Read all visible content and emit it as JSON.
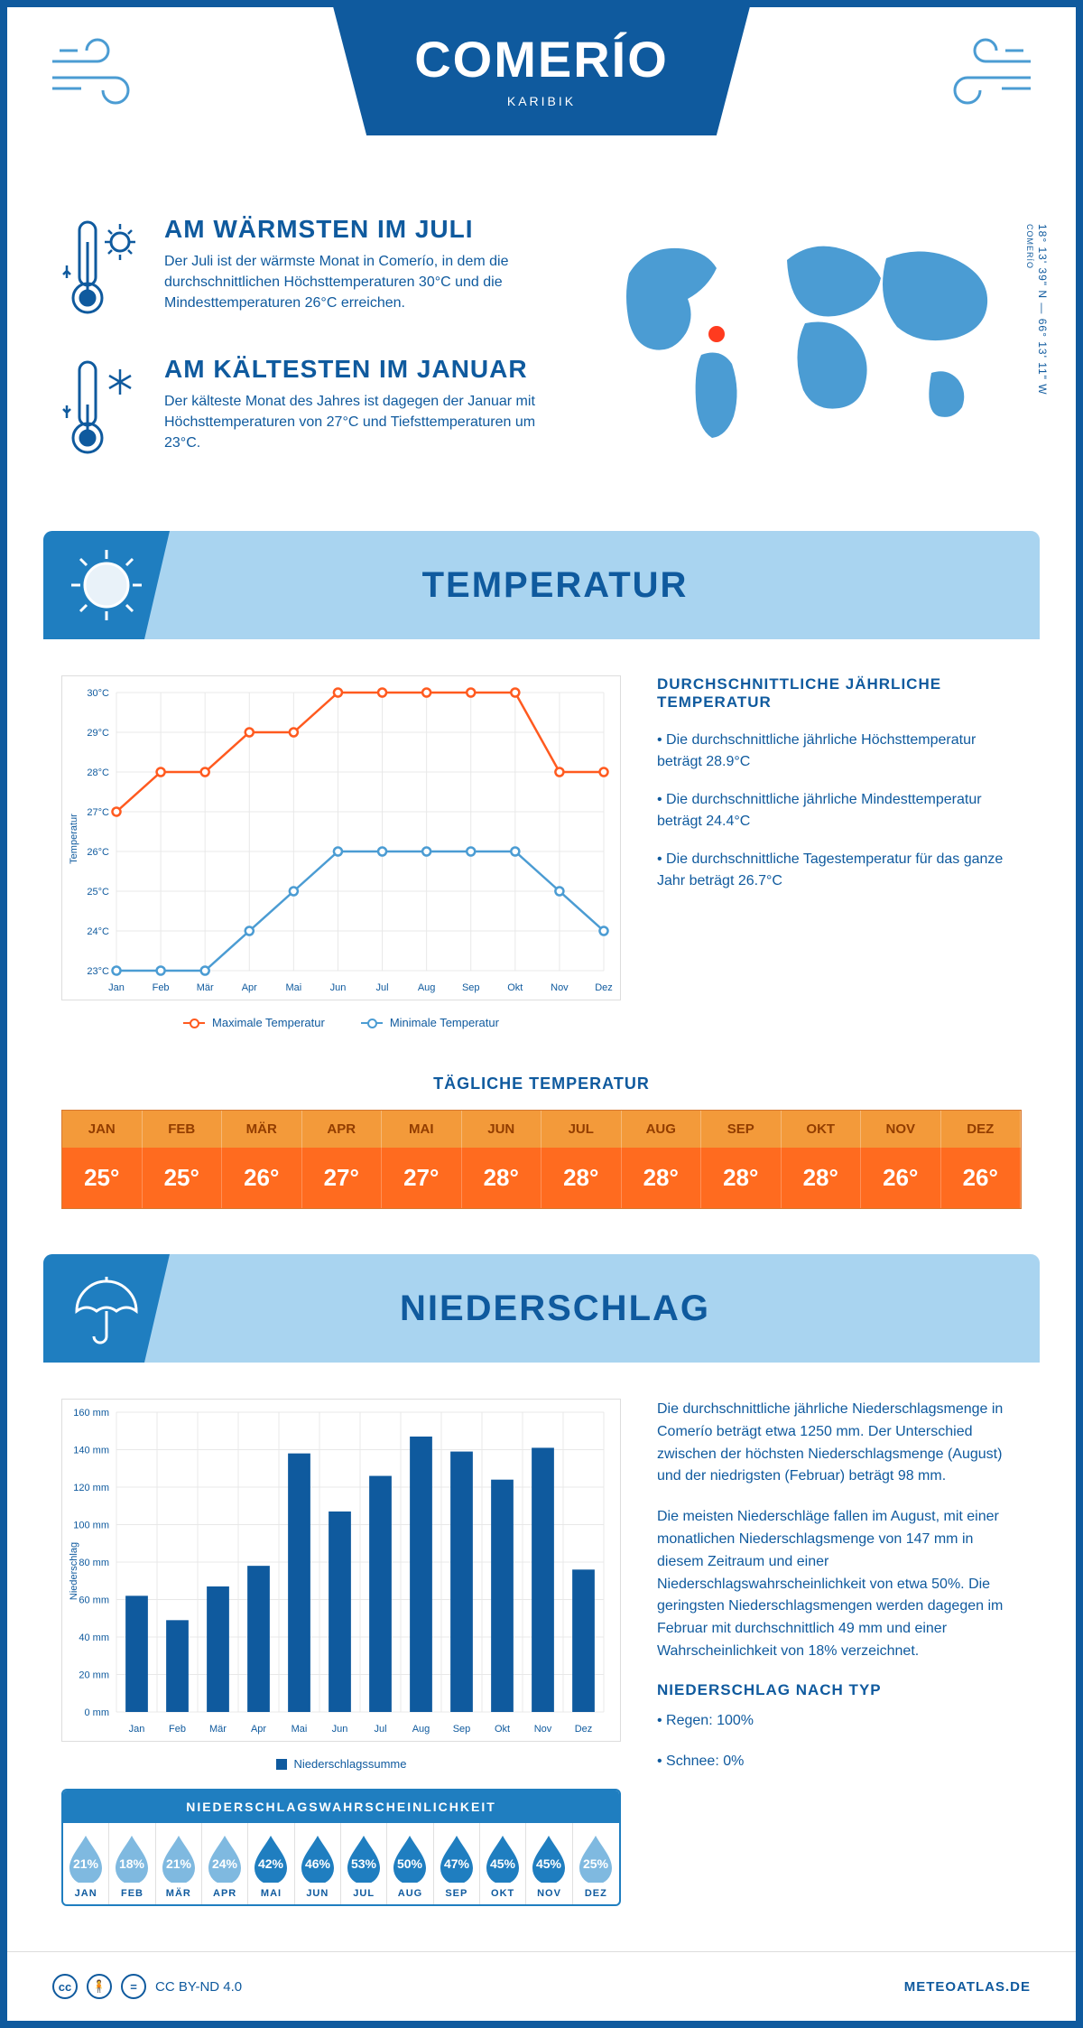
{
  "colors": {
    "primary": "#0f5a9e",
    "accent": "#1f7ec0",
    "light_blue": "#a9d4f0",
    "map_blue": "#4b9cd3",
    "orange_header": "#f39a3a",
    "orange_header_text": "#923d00",
    "orange_row": "#ff6b1f",
    "line_max": "#ff5a1f",
    "line_min": "#4b9cd3",
    "bar_fill": "#0f5a9e",
    "drop_fill": "#1f7ec0",
    "drop_fill_light": "#7fb9e0",
    "grid": "#e8e8e8"
  },
  "header": {
    "title": "COMERÍO",
    "subtitle": "KARIBIK"
  },
  "coords": {
    "lat": "18° 13' 39\" N",
    "sep": "—",
    "lon": "66° 13' 11\" W",
    "place": "COMERÍO"
  },
  "facts": {
    "warm": {
      "title": "AM WÄRMSTEN IM JULI",
      "text": "Der Juli ist der wärmste Monat in Comerío, in dem die durchschnittlichen Höchsttemperaturen 30°C und die Mindesttemperaturen 26°C erreichen."
    },
    "cold": {
      "title": "AM KÄLTESTEN IM JANUAR",
      "text": "Der kälteste Monat des Jahres ist dagegen der Januar mit Höchsttemperaturen von 27°C und Tiefsttemperaturen um 23°C."
    }
  },
  "temp_section": {
    "title": "TEMPERATUR"
  },
  "temp_chart": {
    "type": "line",
    "ylabel": "Temperatur",
    "months": [
      "Jan",
      "Feb",
      "Mär",
      "Apr",
      "Mai",
      "Jun",
      "Jul",
      "Aug",
      "Sep",
      "Okt",
      "Nov",
      "Dez"
    ],
    "ylim": [
      23,
      30
    ],
    "ytick_step": 1,
    "ytick_suffix": "°C",
    "series": {
      "max": {
        "label": "Maximale Temperatur",
        "color": "#ff5a1f",
        "values": [
          27,
          28,
          28,
          29,
          29,
          30,
          30,
          30,
          30,
          30,
          28,
          28
        ]
      },
      "min": {
        "label": "Minimale Temperatur",
        "color": "#4b9cd3",
        "values": [
          23,
          23,
          23,
          24,
          25,
          26,
          26,
          26,
          26,
          26,
          25,
          24
        ]
      }
    }
  },
  "temp_side": {
    "heading": "DURCHSCHNITTLICHE JÄHRLICHE TEMPERATUR",
    "b1": "• Die durchschnittliche jährliche Höchsttemperatur beträgt 28.9°C",
    "b2": "• Die durchschnittliche jährliche Mindesttemperatur beträgt 24.4°C",
    "b3": "• Die durchschnittliche Tagestemperatur für das ganze Jahr beträgt 26.7°C"
  },
  "daily": {
    "heading": "TÄGLICHE TEMPERATUR",
    "months": [
      "JAN",
      "FEB",
      "MÄR",
      "APR",
      "MAI",
      "JUN",
      "JUL",
      "AUG",
      "SEP",
      "OKT",
      "NOV",
      "DEZ"
    ],
    "values": [
      "25°",
      "25°",
      "26°",
      "27°",
      "27°",
      "28°",
      "28°",
      "28°",
      "28°",
      "28°",
      "26°",
      "26°"
    ]
  },
  "precip_section": {
    "title": "NIEDERSCHLAG"
  },
  "precip_chart": {
    "type": "bar",
    "ylabel": "Niederschlag",
    "months": [
      "Jan",
      "Feb",
      "Mär",
      "Apr",
      "Mai",
      "Jun",
      "Jul",
      "Aug",
      "Sep",
      "Okt",
      "Nov",
      "Dez"
    ],
    "ylim": [
      0,
      160
    ],
    "ytick_step": 20,
    "ytick_suffix": " mm",
    "legend": "Niederschlagssumme",
    "values": [
      62,
      49,
      67,
      78,
      138,
      107,
      126,
      147,
      139,
      124,
      141,
      76
    ],
    "bar_color": "#0f5a9e",
    "bar_width": 0.55
  },
  "precip_text": {
    "p1": "Die durchschnittliche jährliche Niederschlagsmenge in Comerío beträgt etwa 1250 mm. Der Unterschied zwischen der höchsten Niederschlagsmenge (August) und der niedrigsten (Februar) beträgt 98 mm.",
    "p2": "Die meisten Niederschläge fallen im August, mit einer monatlichen Niederschlagsmenge von 147 mm in diesem Zeitraum und einer Niederschlagswahrscheinlichkeit von etwa 50%. Die geringsten Niederschlagsmengen werden dagegen im Februar mit durchschnittlich 49 mm und einer Wahrscheinlichkeit von 18% verzeichnet.",
    "type_heading": "NIEDERSCHLAG NACH TYP",
    "type_rain": "• Regen: 100%",
    "type_snow": "• Schnee: 0%"
  },
  "prob": {
    "heading": "NIEDERSCHLAGSWAHRSCHEINLICHKEIT",
    "months": [
      "JAN",
      "FEB",
      "MÄR",
      "APR",
      "MAI",
      "JUN",
      "JUL",
      "AUG",
      "SEP",
      "OKT",
      "NOV",
      "DEZ"
    ],
    "values": [
      21,
      18,
      21,
      24,
      42,
      46,
      53,
      50,
      47,
      45,
      45,
      25
    ],
    "light_threshold": 30
  },
  "footer": {
    "license": "CC BY-ND 4.0",
    "site": "METEOATLAS.DE"
  }
}
